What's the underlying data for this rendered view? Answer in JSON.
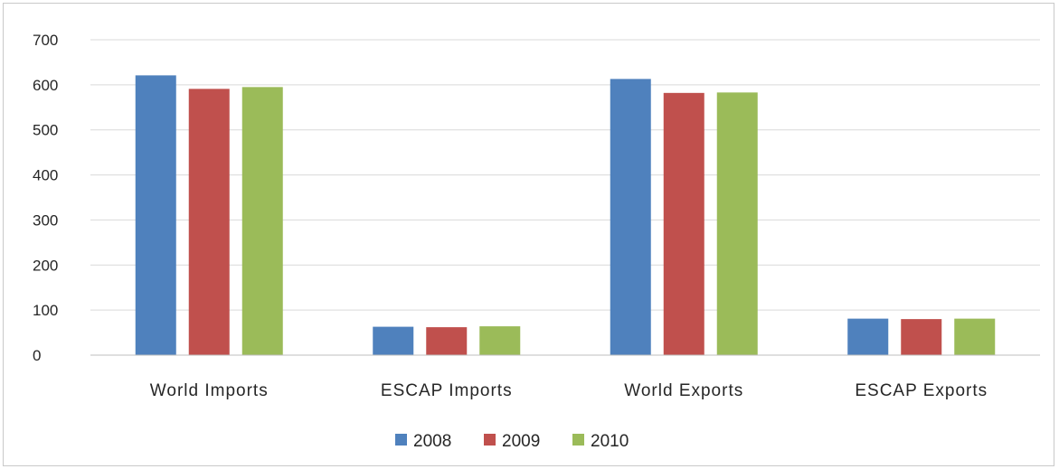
{
  "chart_data": {
    "type": "bar",
    "title": "",
    "xlabel": "",
    "ylabel": "",
    "categories": [
      "World Imports",
      "ESCAP Imports",
      "World Exports",
      "ESCAP Exports"
    ],
    "series": [
      {
        "name": "2008",
        "color": "#4f81bd",
        "values": [
          621,
          63,
          613,
          81
        ]
      },
      {
        "name": "2009",
        "color": "#c0504d",
        "values": [
          591,
          62,
          582,
          80
        ]
      },
      {
        "name": "2010",
        "color": "#9bbb59",
        "values": [
          595,
          64,
          583,
          81
        ]
      }
    ],
    "ylim": [
      0,
      700
    ],
    "yticks": [
      0,
      100,
      200,
      300,
      400,
      500,
      600,
      700
    ],
    "grid": true,
    "legend": "bottom"
  }
}
